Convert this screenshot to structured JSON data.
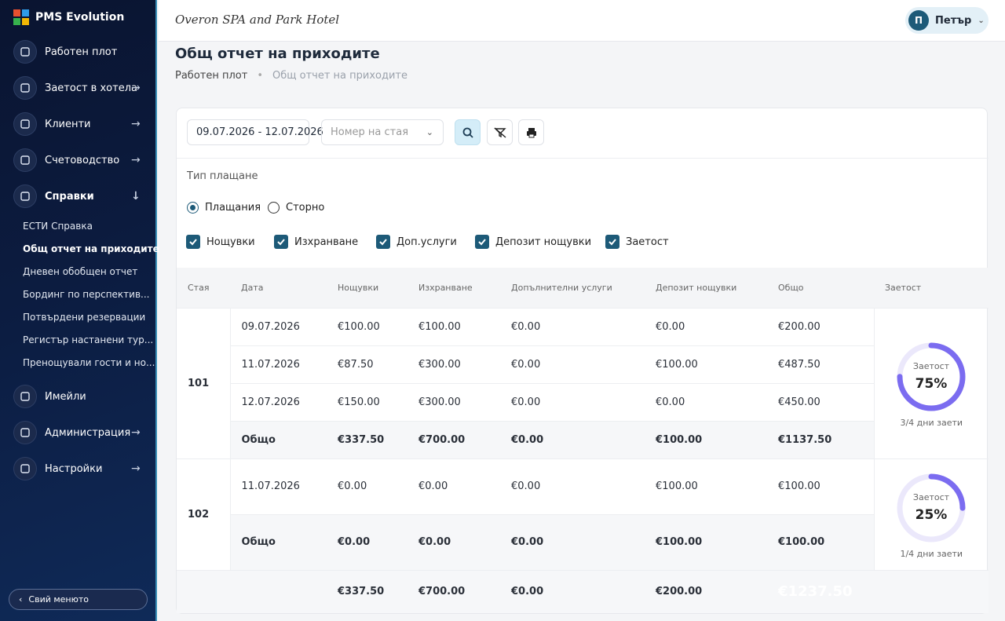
{
  "sidebar": {
    "brand": "PMS Evolution",
    "menu": [
      {
        "label": "Работен плот",
        "expandable": false,
        "active": false
      },
      {
        "label": "Заетост в хотела",
        "expandable": true,
        "active": false
      },
      {
        "label": "Клиенти",
        "expandable": true,
        "active": false
      },
      {
        "label": "Счетоводство",
        "expandable": true,
        "active": false
      },
      {
        "label": "Справки",
        "expandable": true,
        "active": true,
        "submenu": [
          {
            "label": "ЕСТИ Справка",
            "active": false
          },
          {
            "label": "Общ отчет на приходите",
            "active": true
          },
          {
            "label": "Дневен обобщен отчет",
            "active": false
          },
          {
            "label": "Бординг по перспектив...",
            "active": false
          },
          {
            "label": "Потвърдени резервации",
            "active": false
          },
          {
            "label": "Регистър настанени тур...",
            "active": false
          },
          {
            "label": "Пренощували гости и но...",
            "active": false
          }
        ]
      },
      {
        "label": "Имейли",
        "expandable": false,
        "active": false
      },
      {
        "label": "Администрация",
        "expandable": true,
        "active": false
      },
      {
        "label": "Настройки",
        "expandable": true,
        "active": false
      }
    ],
    "collapse": "Свий менюто"
  },
  "header": {
    "hotel": "Overon SPA and Park Hotel",
    "user_initial": "П",
    "user": "Петър"
  },
  "page": {
    "title": "Общ отчет на приходите",
    "breadcrumb": [
      "Работен плот",
      "Общ отчет на приходите"
    ]
  },
  "filters": {
    "date_range": "09.07.2026 - 12.07.2026",
    "room_placeholder": "Номер на стая",
    "payment_type_label": "Тип плащане",
    "radios": [
      {
        "label": "Плащания",
        "checked": true
      },
      {
        "label": "Сторно",
        "checked": false
      }
    ],
    "checkboxes": [
      {
        "label": "Нощувки",
        "checked": true
      },
      {
        "label": "Изхранване",
        "checked": true
      },
      {
        "label": "Доп.услуги",
        "checked": true
      },
      {
        "label": "Депозит нощувки",
        "checked": true
      },
      {
        "label": "Заетост",
        "checked": true
      }
    ]
  },
  "table": {
    "columns": [
      "Стая",
      "Дата",
      "Нощувки",
      "Изхранване",
      "Допълнителни услуги",
      "Депозит нощувки",
      "Общо",
      "Заетост"
    ],
    "rooms": [
      {
        "room": "101",
        "rows": [
          [
            "09.07.2026",
            "€100.00",
            "€100.00",
            "€0.00",
            "€0.00",
            "€200.00"
          ],
          [
            "11.07.2026",
            "€87.50",
            "€300.00",
            "€0.00",
            "€100.00",
            "€487.50"
          ],
          [
            "12.07.2026",
            "€150.00",
            "€300.00",
            "€0.00",
            "€0.00",
            "€450.00"
          ]
        ],
        "total": [
          "Общо",
          "€337.50",
          "€700.00",
          "€0.00",
          "€100.00",
          "€1137.50"
        ],
        "occupancy": {
          "label": "Заетост",
          "percent": 75,
          "percent_label": "75%",
          "days": "3/4 дни заети"
        }
      },
      {
        "room": "102",
        "rows": [
          [
            "11.07.2026",
            "€0.00",
            "€0.00",
            "€0.00",
            "€100.00",
            "€100.00"
          ]
        ],
        "total": [
          "Общо",
          "€0.00",
          "€0.00",
          "€0.00",
          "€100.00",
          "€100.00"
        ],
        "occupancy": {
          "label": "Заетост",
          "percent": 25,
          "percent_label": "25%",
          "days": "1/4 дни заети"
        }
      }
    ],
    "grand_total": [
      "€337.50",
      "€700.00",
      "€0.00",
      "€200.00",
      "€1237.50"
    ]
  }
}
